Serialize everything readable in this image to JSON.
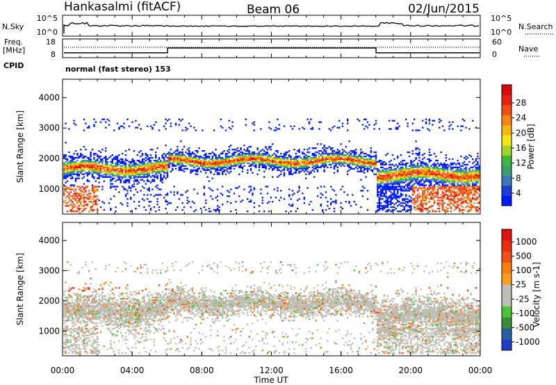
{
  "header": {
    "station": "Hankasalmi (fitACF)",
    "beam": "Beam 06",
    "date": "02/Jun/2015"
  },
  "noise_panel": {
    "left_label": "N.Sky",
    "right_label": "N.Search",
    "y_ticks_left": [
      "10^5",
      "10^0"
    ],
    "y_ticks_right": [
      "10^5",
      "10^0"
    ]
  },
  "freq_panel": {
    "left_label": "Freq.",
    "left_unit": "[MHz]",
    "right_label": "Nave",
    "y_ticks_left": [
      "18",
      "8"
    ],
    "y_ticks_right": [
      "60",
      "0"
    ]
  },
  "cpid": {
    "label": "CPID",
    "text": "normal (fast stereo) 153"
  },
  "chart_data": [
    {
      "type": "heatmap",
      "name": "Power",
      "ylabel": "Slant Range [km]",
      "ylim": [
        180,
        4600
      ],
      "xlim": [
        0,
        24
      ],
      "y_ticks": [
        1000,
        2000,
        3000,
        4000
      ],
      "colorbar": {
        "label": "Power [dB]",
        "tick_labels": [
          "4",
          "8",
          "12",
          "16",
          "20",
          "24",
          "28"
        ],
        "colors": [
          "#0019ff",
          "#1a3fd4",
          "#3c78b8",
          "#3a9e6e",
          "#3eb83a",
          "#a8d42a",
          "#f2e512",
          "#f7b812",
          "#f58412",
          "#f05010",
          "#e82010",
          "#d80c0c"
        ]
      },
      "scatter_bands": [
        {
          "t0": 0,
          "t1": 6,
          "center": 1650,
          "width": 230,
          "level": "strong"
        },
        {
          "t0": 6,
          "t1": 18,
          "center": 1900,
          "width": 180,
          "level": "medium"
        },
        {
          "t0": 18,
          "t1": 24,
          "center": 1450,
          "width": 260,
          "level": "strong"
        }
      ]
    },
    {
      "type": "heatmap",
      "name": "Velocity",
      "ylabel": "Slant Range [km]",
      "xlabel": "Time UT",
      "ylim": [
        180,
        4600
      ],
      "xlim": [
        0,
        24
      ],
      "y_ticks": [
        1000,
        2000,
        3000,
        4000
      ],
      "x_tick_labels": [
        "00:00",
        "04:00",
        "08:00",
        "12:00",
        "16:00",
        "20:00",
        "00:00"
      ],
      "colorbar": {
        "label": "Velocity [m s-1]",
        "tick_labels": [
          "1000",
          "500",
          "100",
          "25",
          "-25",
          "-100",
          "-500",
          "-1000"
        ],
        "colors": [
          "#1f3fc8",
          "#2a5f9e",
          "#3a8a3a",
          "#4cc43a",
          "#bdbdb4",
          "#bdbdb4",
          "#f7a020",
          "#f58010",
          "#f05018",
          "#e83010",
          "#e01010"
        ]
      },
      "scatter_bands": [
        {
          "t0": 0,
          "t1": 6,
          "center": 1650,
          "width": 300,
          "level": "ground"
        },
        {
          "t0": 6,
          "t1": 18,
          "center": 1900,
          "width": 220,
          "level": "ground"
        },
        {
          "t0": 18,
          "t1": 24,
          "center": 1500,
          "width": 320,
          "level": "ground"
        }
      ]
    }
  ]
}
